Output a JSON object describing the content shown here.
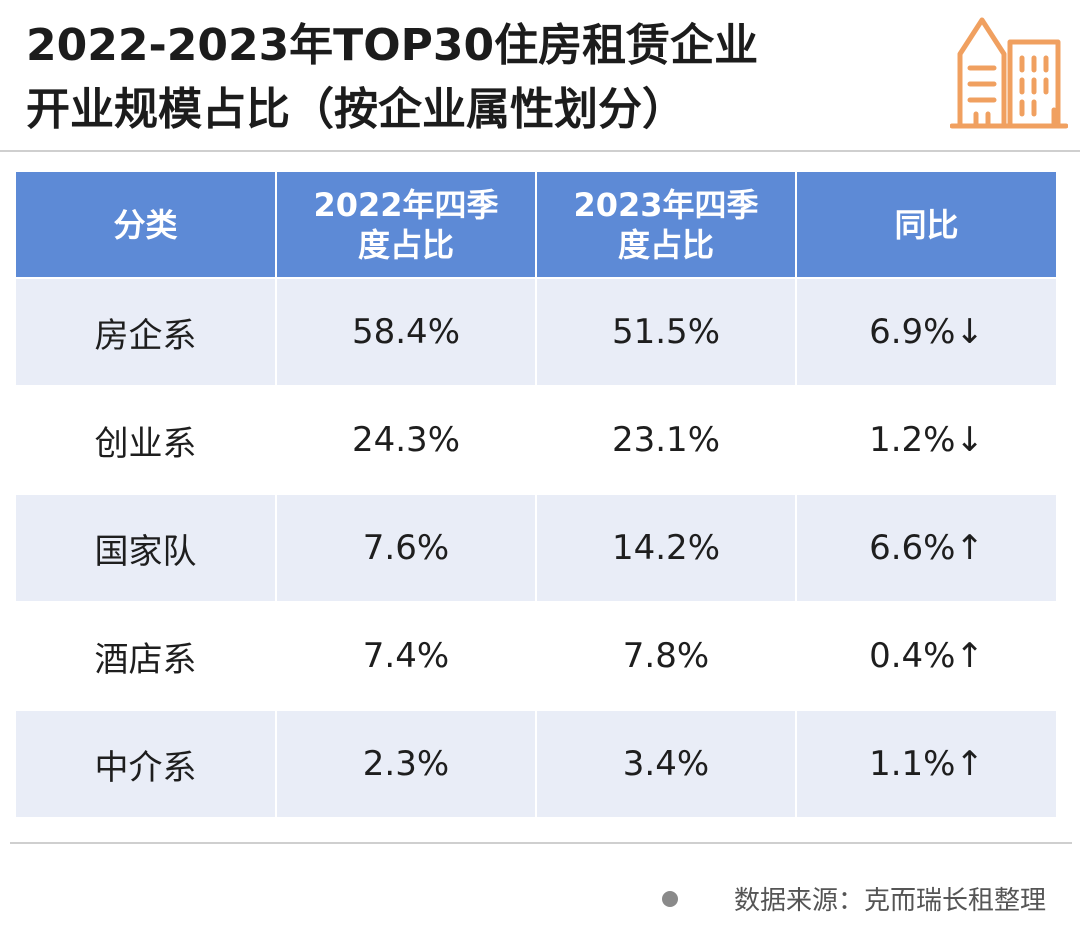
{
  "title": {
    "line1": "2022-2023年TOP30住房租赁企业",
    "line2": "开业规模占比（按企业属性划分）"
  },
  "table": {
    "headers": [
      "分类",
      "2022年四季度占比",
      "2023年四季度占比",
      "同比"
    ],
    "header_lines": [
      [
        "分类"
      ],
      [
        "2022年四季",
        "度占比"
      ],
      [
        "2023年四季",
        "度占比"
      ],
      [
        "同比"
      ]
    ],
    "rows": [
      {
        "category": "房企系",
        "q4_2022": "58.4%",
        "q4_2023": "51.5%",
        "yoy": "6.9%↓"
      },
      {
        "category": "创业系",
        "q4_2022": "24.3%",
        "q4_2023": "23.1%",
        "yoy": "1.2%↓"
      },
      {
        "category": "国家队",
        "q4_2022": "7.6%",
        "q4_2023": "14.2%",
        "yoy": "6.6%↑"
      },
      {
        "category": "酒店系",
        "q4_2022": "7.4%",
        "q4_2023": "7.8%",
        "yoy": "0.4%↑"
      },
      {
        "category": "中介系",
        "q4_2022": "2.3%",
        "q4_2023": "3.4%",
        "yoy": "1.1%↑"
      }
    ]
  },
  "source": {
    "text": "数据来源：克而瑞长租整理"
  },
  "colors": {
    "header_bg": "#5d8ad6",
    "row_alt_bg": "#e9edf7",
    "icon_orange": "#f0a060"
  },
  "icons": {
    "header_icon": "building-icon"
  }
}
